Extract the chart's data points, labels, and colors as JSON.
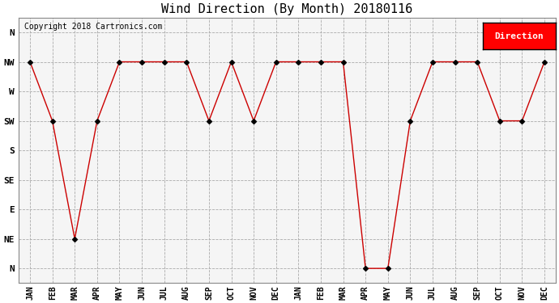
{
  "title": "Wind Direction (By Month) 20180116",
  "copyright": "Copyright 2018 Cartronics.com",
  "legend_label": "Direction",
  "legend_bg": "#ff0000",
  "legend_text_color": "#ffffff",
  "x_labels": [
    "JAN",
    "FEB",
    "MAR",
    "APR",
    "MAY",
    "JUN",
    "JUL",
    "AUG",
    "SEP",
    "OCT",
    "NOV",
    "DEC",
    "JAN",
    "FEB",
    "MAR",
    "APR",
    "MAY",
    "JUN",
    "JUL",
    "AUG",
    "SEP",
    "OCT",
    "NOV",
    "DEC"
  ],
  "y_labels": [
    "N",
    "NW",
    "W",
    "SW",
    "S",
    "SE",
    "E",
    "NE",
    "N"
  ],
  "y_positions": [
    8,
    7,
    6,
    5,
    4,
    3,
    2,
    1,
    0
  ],
  "data_values": [
    7,
    5,
    1,
    5,
    7,
    7,
    7,
    7,
    5,
    7,
    5,
    7,
    7,
    7,
    7,
    0,
    0,
    5,
    7,
    7,
    7,
    5,
    5,
    7
  ],
  "line_color": "#cc0000",
  "marker": "D",
  "marker_size": 3,
  "marker_color": "#000000",
  "bg_color": "#ffffff",
  "plot_bg_color": "#f5f5f5",
  "grid_color": "#aaaaaa",
  "title_fontsize": 11,
  "copyright_fontsize": 7,
  "tick_fontsize": 7,
  "ytick_fontsize": 8
}
